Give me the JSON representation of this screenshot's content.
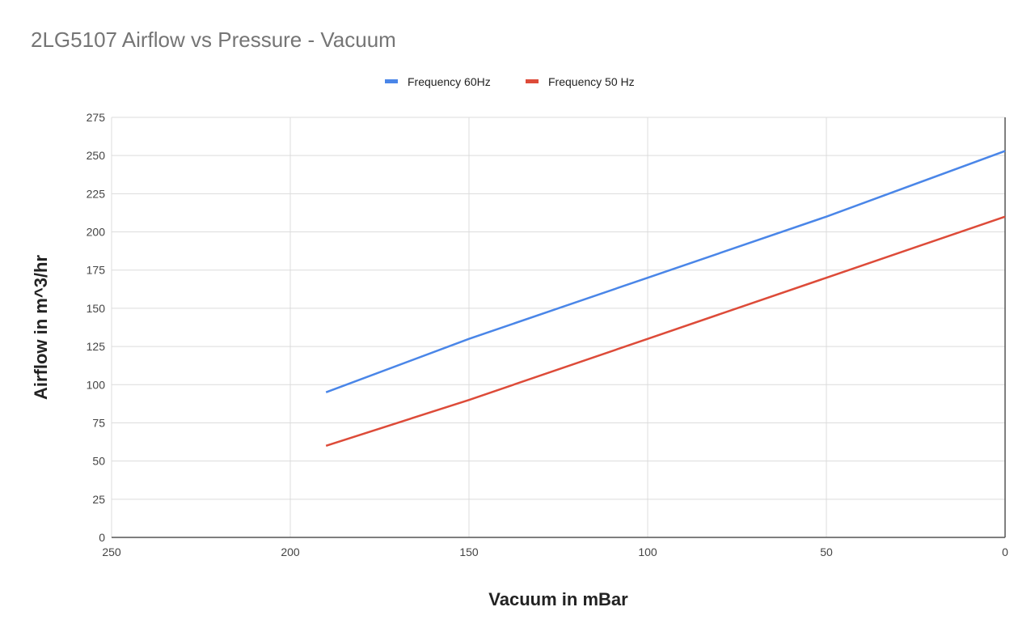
{
  "chart_data": {
    "type": "line",
    "title": "2LG5107 Airflow vs Pressure - Vacuum",
    "xlabel": "Vacuum in mBar",
    "ylabel": "Airflow in m^3/hr",
    "xlim": [
      250,
      0
    ],
    "ylim": [
      0,
      275
    ],
    "x_reversed": true,
    "xticks": [
      250,
      200,
      150,
      100,
      50,
      0
    ],
    "yticks": [
      0,
      25,
      50,
      75,
      100,
      125,
      150,
      175,
      200,
      225,
      250,
      275
    ],
    "grid": true,
    "legend_position": "top",
    "series": [
      {
        "name": "Frequency 60Hz",
        "color": "#4a86e8",
        "x": [
          190,
          150,
          100,
          50,
          0
        ],
        "y": [
          95,
          130,
          170,
          210,
          253
        ]
      },
      {
        "name": "Frequency 50 Hz",
        "color": "#dd4b39",
        "x": [
          190,
          150,
          100,
          50,
          0
        ],
        "y": [
          60,
          90,
          130,
          170,
          210
        ]
      }
    ]
  }
}
